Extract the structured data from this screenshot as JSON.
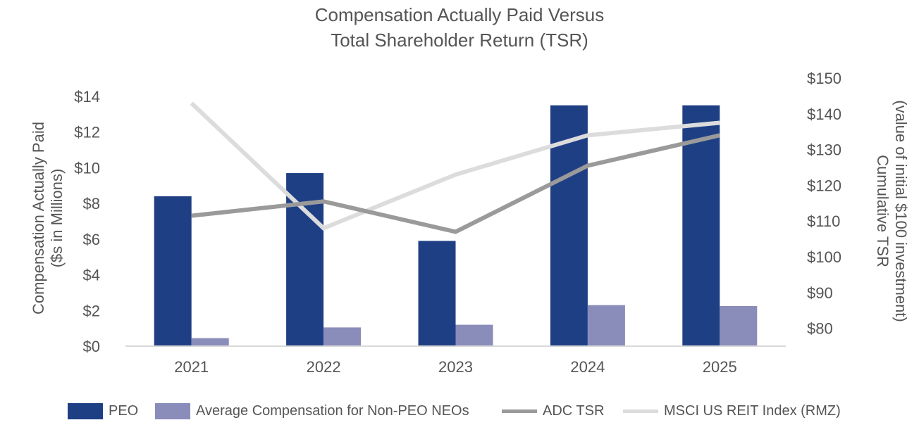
{
  "title": {
    "line1": "Compensation Actually Paid Versus",
    "line2": "Total Shareholder Return (TSR)"
  },
  "chart_data": {
    "type": "bar",
    "title": "Compensation Actually Paid Versus Total Shareholder Return (TSR)",
    "categories": [
      "2021",
      "2022",
      "2023",
      "2024",
      "2025"
    ],
    "left_axis": {
      "label_line1": "Compensation Actually Paid",
      "label_line2": "($s in Millions)",
      "min": 0,
      "max": 14,
      "ticks": [
        0,
        2,
        4,
        6,
        8,
        10,
        12,
        14
      ],
      "tick_labels": [
        "$0",
        "$2",
        "$4",
        "$6",
        "$8",
        "$10",
        "$12",
        "$14"
      ]
    },
    "right_axis": {
      "label_line1": "Cumulative TSR",
      "label_line2": "(value of initial $100 investment)",
      "min": 75,
      "max": 150,
      "ticks": [
        80,
        90,
        100,
        110,
        120,
        130,
        140,
        150
      ],
      "tick_labels": [
        "$80",
        "$90",
        "$100",
        "$110",
        "$120",
        "$130",
        "$140",
        "$150"
      ]
    },
    "series": [
      {
        "name": "PEO",
        "kind": "bar",
        "axis": "left",
        "color": "#1f3f85",
        "values": [
          8.4,
          9.7,
          5.9,
          13.5,
          13.5
        ]
      },
      {
        "name": "Average Compensation for Non-PEO NEOs",
        "kind": "bar",
        "axis": "left",
        "color": "#8a8cba",
        "values": [
          0.45,
          1.05,
          1.2,
          2.3,
          2.25
        ]
      },
      {
        "name": "ADC TSR",
        "kind": "line",
        "axis": "right",
        "color": "#9a9a9a",
        "values": [
          111.5,
          115.5,
          107.0,
          125.5,
          134.0
        ]
      },
      {
        "name": "MSCI US REIT Index (RMZ)",
        "kind": "line",
        "axis": "right",
        "color": "#dcdcdc",
        "values": [
          143.0,
          108.0,
          123.0,
          134.0,
          137.5
        ]
      }
    ],
    "legend": {
      "position": "bottom",
      "items": [
        "PEO",
        "Average Compensation for Non-PEO NEOs",
        "ADC TSR",
        "MSCI US REIT Index (RMZ)"
      ]
    },
    "grid": false
  }
}
